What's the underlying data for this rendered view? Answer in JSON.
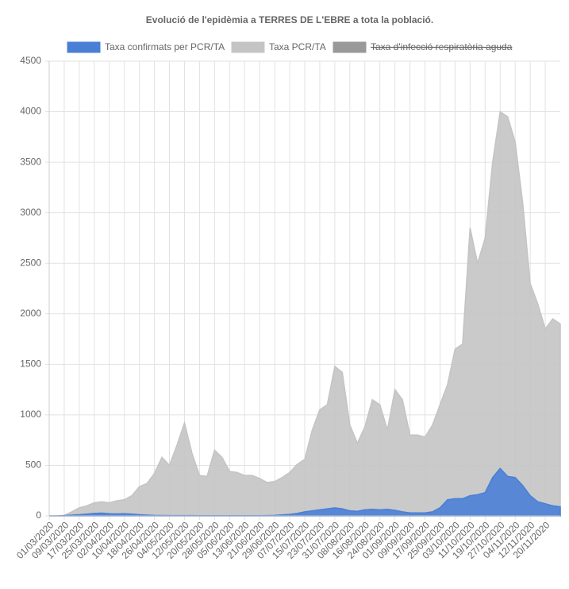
{
  "chart_data": {
    "type": "area",
    "title": "Evolució de l'epidèmia a TERRES DE L'EBRE a tota la població.",
    "categories": [
      "01/03/2020",
      null,
      "09/03/2020",
      null,
      "17/03/2020",
      null,
      "25/03/2020",
      null,
      "02/04/2020",
      null,
      "10/04/2020",
      null,
      "18/04/2020",
      null,
      "26/04/2020",
      null,
      "04/05/2020",
      null,
      "12/05/2020",
      null,
      "20/05/2020",
      null,
      "28/05/2020",
      null,
      "05/06/2020",
      null,
      "13/06/2020",
      null,
      "21/06/2020",
      null,
      "29/06/2020",
      null,
      "07/07/2020",
      null,
      "15/07/2020",
      null,
      "23/07/2020",
      null,
      "31/07/2020",
      null,
      "08/08/2020",
      null,
      "16/08/2020",
      null,
      "24/08/2020",
      null,
      "01/09/2020",
      null,
      "09/09/2020",
      null,
      "17/09/2020",
      null,
      "25/09/2020",
      null,
      "03/10/2020",
      null,
      "11/10/2020",
      null,
      "19/10/2020",
      null,
      "27/10/2020",
      null,
      "04/11/2020",
      null,
      "12/11/2020",
      null,
      "20/11/2020",
      null,
      null
    ],
    "series": [
      {
        "name": "Taxa confirmats per PCR/TA",
        "color": "#4a7fd6",
        "values": [
          0,
          0,
          3,
          8,
          12,
          18,
          25,
          28,
          22,
          20,
          22,
          18,
          12,
          8,
          5,
          4,
          3,
          3,
          3,
          3,
          2,
          2,
          2,
          2,
          2,
          2,
          2,
          2,
          2,
          3,
          5,
          10,
          15,
          25,
          40,
          50,
          60,
          70,
          80,
          70,
          50,
          45,
          60,
          65,
          60,
          65,
          55,
          40,
          30,
          30,
          30,
          40,
          80,
          160,
          170,
          170,
          200,
          210,
          230,
          380,
          470,
          390,
          380,
          300,
          200,
          140,
          120,
          100,
          90
        ]
      },
      {
        "name": "Taxa PCR/TA",
        "color": "#c4c4c4",
        "values": [
          0,
          0,
          5,
          40,
          80,
          100,
          130,
          140,
          130,
          150,
          160,
          200,
          290,
          320,
          420,
          580,
          500,
          700,
          920,
          620,
          400,
          390,
          650,
          580,
          440,
          430,
          400,
          400,
          370,
          330,
          340,
          380,
          430,
          510,
          560,
          850,
          1050,
          1100,
          1480,
          1420,
          900,
          720,
          880,
          1150,
          1100,
          850,
          1250,
          1150,
          800,
          800,
          780,
          900,
          1100,
          1300,
          1650,
          1700,
          2850,
          2500,
          2750,
          3500,
          4000,
          3950,
          3700,
          3100,
          2300,
          2100,
          1850,
          1950,
          1900
        ]
      },
      {
        "name": "Taxa d'infecció respiratòria aguda",
        "color": "#999999",
        "hidden": true
      }
    ],
    "ylim": [
      0,
      4500
    ],
    "yticks": [
      0,
      500,
      1000,
      1500,
      2000,
      2500,
      3000,
      3500,
      4000,
      4500
    ],
    "grid": true,
    "legend": "top"
  }
}
